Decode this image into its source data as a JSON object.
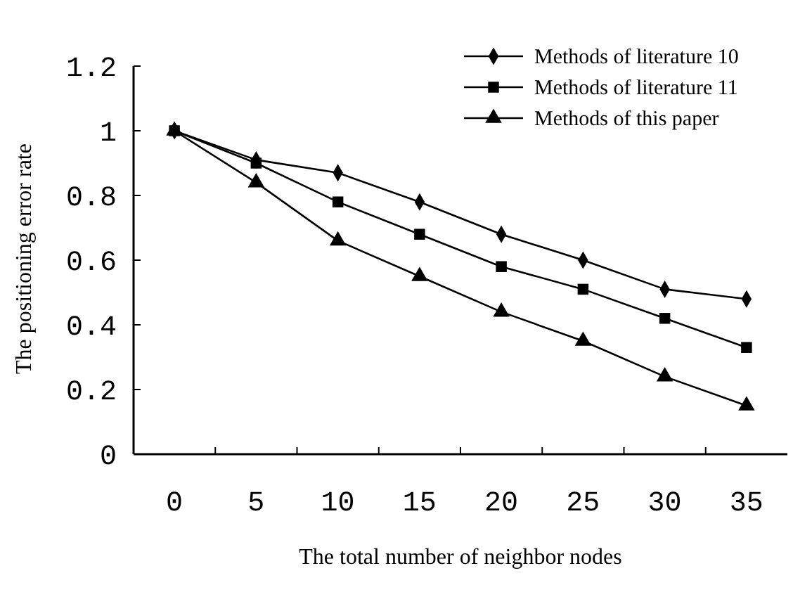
{
  "chart_data": {
    "type": "line",
    "xlabel": "The total number of neighbor nodes",
    "ylabel": "The positioning error rate",
    "categories": [
      "0",
      "5",
      "10",
      "15",
      "20",
      "25",
      "30",
      "35"
    ],
    "series": [
      {
        "name": "Methods of literature 10",
        "color": "#000000",
        "marker": "diamond",
        "values": [
          1,
          0.91,
          0.87,
          0.78,
          0.68,
          0.6,
          0.51,
          0.48
        ]
      },
      {
        "name": "Methods of literature 11",
        "color": "#000000",
        "marker": "square",
        "values": [
          1,
          0.9,
          0.78,
          0.68,
          0.58,
          0.51,
          0.42,
          0.33
        ]
      },
      {
        "name": "Methods of this paper",
        "color": "#000000",
        "marker": "triangle",
        "values": [
          1,
          0.84,
          0.66,
          0.55,
          0.44,
          0.35,
          0.24,
          0.15
        ]
      }
    ],
    "ylim": [
      0,
      1.2
    ],
    "yticks": [
      0,
      0.2,
      0.4,
      0.6,
      0.8,
      1,
      1.2
    ],
    "grid": false,
    "legend": "top right",
    "line_style": "solid"
  }
}
